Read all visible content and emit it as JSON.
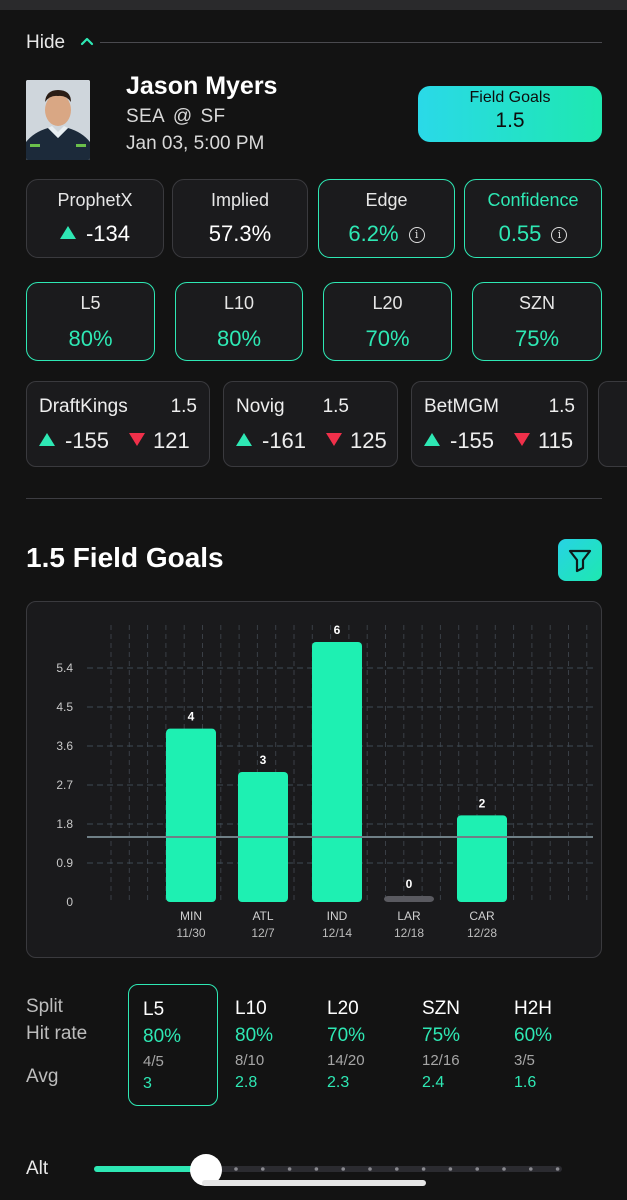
{
  "hide_label": "Hide",
  "player": {
    "name": "Jason Myers",
    "team": "SEA",
    "at": "@",
    "opponent": "SF",
    "game_time": "Jan 03, 5:00 PM"
  },
  "market": {
    "name": "Field Goals",
    "line": "1.5"
  },
  "stats": {
    "prophetx": {
      "label": "ProphetX",
      "value": "-134"
    },
    "implied": {
      "label": "Implied",
      "value": "57.3%"
    },
    "edge": {
      "label": "Edge",
      "value": "6.2%"
    },
    "confidence": {
      "label": "Confidence",
      "value": "0.55"
    }
  },
  "hit_rates": [
    {
      "label": "L5",
      "value": "80%"
    },
    {
      "label": "L10",
      "value": "80%"
    },
    {
      "label": "L20",
      "value": "70%"
    },
    {
      "label": "SZN",
      "value": "75%"
    }
  ],
  "books": [
    {
      "name": "DraftKings",
      "line": "1.5",
      "over": "-155",
      "under": "121"
    },
    {
      "name": "Novig",
      "line": "1.5",
      "over": "-161",
      "under": "125"
    },
    {
      "name": "BetMGM",
      "line": "1.5",
      "over": "-155",
      "under": "115"
    }
  ],
  "section_title": "1.5 Field Goals",
  "chart_data": {
    "type": "bar",
    "categories": [
      "MIN",
      "ATL",
      "IND",
      "LAR",
      "CAR"
    ],
    "dates": [
      "11/30",
      "12/7",
      "12/14",
      "12/18",
      "12/28"
    ],
    "values": [
      4,
      3,
      6,
      0,
      2
    ],
    "y_ticks": [
      "0",
      "0.9",
      "1.8",
      "2.7",
      "3.6",
      "4.5",
      "5.4"
    ],
    "ylim": [
      0,
      6.3
    ],
    "threshold": 1.5,
    "grid": true,
    "bar_color": "#1ef0b2",
    "zero_bar_color": "#5a5a60"
  },
  "splits": {
    "row_labels": {
      "split": "Split",
      "hit_rate": "Hit rate",
      "avg": "Avg"
    },
    "columns": [
      {
        "name": "L5",
        "hit_rate": "80%",
        "fraction": "4/5",
        "avg": "3"
      },
      {
        "name": "L10",
        "hit_rate": "80%",
        "fraction": "8/10",
        "avg": "2.8"
      },
      {
        "name": "L20",
        "hit_rate": "70%",
        "fraction": "14/20",
        "avg": "2.3"
      },
      {
        "name": "SZN",
        "hit_rate": "75%",
        "fraction": "12/16",
        "avg": "2.4"
      },
      {
        "name": "H2H",
        "hit_rate": "60%",
        "fraction": "3/5",
        "avg": "1.6"
      }
    ]
  },
  "alt": {
    "label": "Alt",
    "level": 0.24
  },
  "colors": {
    "accent": "#2ee8b4",
    "negative": "#f0304a",
    "background": "#131313"
  }
}
